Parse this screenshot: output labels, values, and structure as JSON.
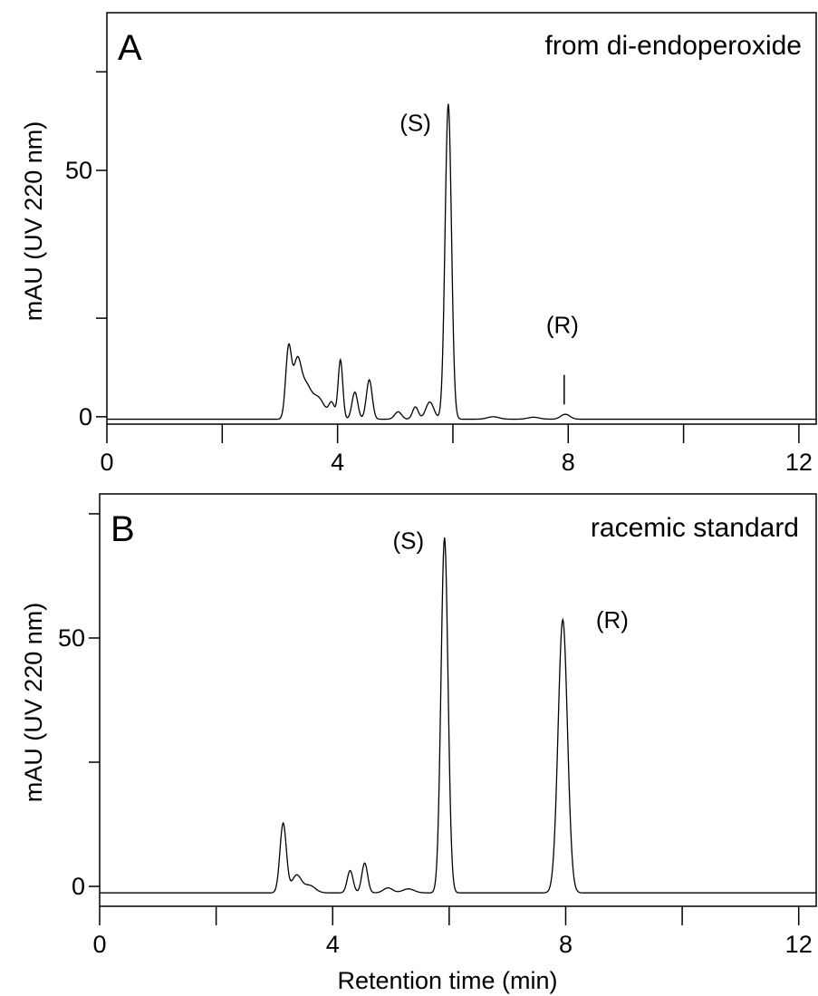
{
  "chart_data": [
    {
      "type": "line",
      "panel_label": "A",
      "title": "from di-endoperoxide",
      "xlabel": "",
      "ylabel": "mAU (UV 220 nm)",
      "xlim": [
        0,
        12.3
      ],
      "ylim": [
        -1.5,
        82
      ],
      "x_ticks": [
        0,
        4,
        8,
        12
      ],
      "x_tick_labels": [
        "0",
        "4",
        "8",
        "12"
      ],
      "x_minor_ticks": [
        2,
        6,
        10
      ],
      "y_ticks": [
        0,
        50
      ],
      "y_tick_labels": [
        "0",
        "50"
      ],
      "y_minor_ticks": [
        20,
        70
      ],
      "baseline": -0.5,
      "peaks": [
        {
          "t": 3.15,
          "h": 14.0,
          "w": 0.05
        },
        {
          "t": 3.3,
          "h": 11.5,
          "w": 0.07
        },
        {
          "t": 3.45,
          "h": 5.5,
          "w": 0.08
        },
        {
          "t": 3.65,
          "h": 4.5,
          "w": 0.12
        },
        {
          "t": 3.9,
          "h": 3.0,
          "w": 0.05
        },
        {
          "t": 4.05,
          "h": 12.0,
          "w": 0.04
        },
        {
          "t": 4.3,
          "h": 5.5,
          "w": 0.05
        },
        {
          "t": 4.55,
          "h": 8.0,
          "w": 0.05
        },
        {
          "t": 5.05,
          "h": 1.5,
          "w": 0.06
        },
        {
          "t": 5.35,
          "h": 2.5,
          "w": 0.05
        },
        {
          "t": 5.6,
          "h": 3.5,
          "w": 0.07
        },
        {
          "t": 5.92,
          "h": 64.0,
          "w": 0.055
        },
        {
          "t": 6.7,
          "h": 0.5,
          "w": 0.1
        },
        {
          "t": 7.4,
          "h": 0.4,
          "w": 0.1
        },
        {
          "t": 7.95,
          "h": 1.0,
          "w": 0.08
        }
      ],
      "annotations": [
        {
          "text": "(S)",
          "x": 5.35,
          "y": 58
        },
        {
          "text": "(R)",
          "x": 7.9,
          "y": 17
        }
      ],
      "marker_line": {
        "x": 7.93,
        "y_from": 2.5,
        "y_to": 8.5
      }
    },
    {
      "type": "line",
      "panel_label": "B",
      "title": "racemic standard",
      "xlabel": "Retention time (min)",
      "ylabel": "mAU (UV 220 nm)",
      "xlim": [
        0,
        12.3
      ],
      "ylim": [
        -4,
        79
      ],
      "x_ticks": [
        0,
        4,
        8,
        12
      ],
      "x_tick_labels": [
        "0",
        "4",
        "8",
        "12"
      ],
      "x_minor_ticks": [
        2,
        6,
        10
      ],
      "y_ticks": [
        0,
        50
      ],
      "y_tick_labels": [
        "0",
        "50"
      ],
      "y_minor_ticks": [
        25,
        75
      ],
      "baseline": -1.3,
      "peaks": [
        {
          "t": 3.15,
          "h": 14.0,
          "w": 0.055
        },
        {
          "t": 3.38,
          "h": 3.5,
          "w": 0.08
        },
        {
          "t": 3.6,
          "h": 1.5,
          "w": 0.1
        },
        {
          "t": 4.3,
          "h": 4.5,
          "w": 0.05
        },
        {
          "t": 4.55,
          "h": 6.0,
          "w": 0.05
        },
        {
          "t": 4.95,
          "h": 1.0,
          "w": 0.08
        },
        {
          "t": 5.3,
          "h": 0.8,
          "w": 0.1
        },
        {
          "t": 5.92,
          "h": 71.5,
          "w": 0.06
        },
        {
          "t": 7.95,
          "h": 55.0,
          "w": 0.08
        }
      ],
      "annotations": [
        {
          "text": "(S)",
          "x": 5.3,
          "y": 68
        },
        {
          "text": "(R)",
          "x": 8.8,
          "y": 52
        }
      ]
    }
  ]
}
